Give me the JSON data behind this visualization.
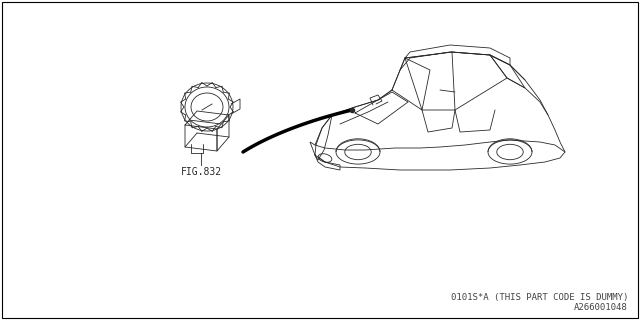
{
  "background_color": "#ffffff",
  "border_color": "#000000",
  "fig_label": "FIG.832",
  "bottom_text_line1": "0101S*A (THIS PART CODE IS DUMMY)",
  "bottom_text_line2": "A266001048",
  "text_fontsize": 6.5,
  "label_fontsize": 7,
  "font_family": "monospace",
  "line_color": "#2a2a2a",
  "line_width": 0.6
}
